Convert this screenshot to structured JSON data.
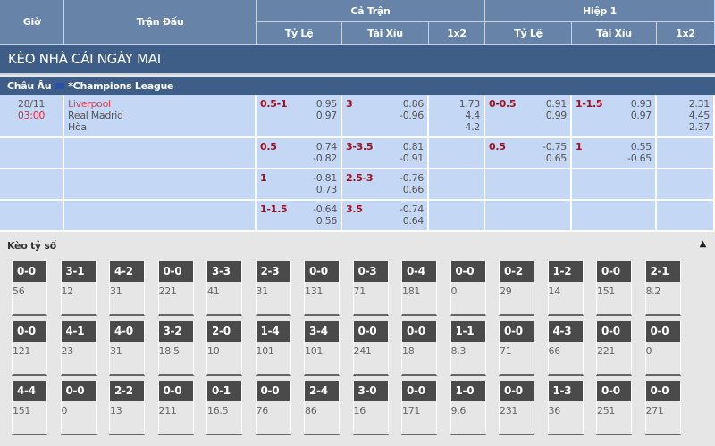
{
  "header": {
    "time": "Giờ",
    "match": "Trận Đấu",
    "full": "Cả Trận",
    "half": "Hiệp 1",
    "handicap": "Tỷ Lệ",
    "overunder": "Tài Xỉu",
    "onextwo": "1x2",
    "handicap2": "Tỷ Lệ",
    "overunder2": "Tài Xỉu",
    "onextwo2": "1x2"
  },
  "title": "KÈO NHÀ CÁI NGÀY MAI",
  "league": {
    "region": "Châu Âu",
    "name": "*Champions League"
  },
  "match": {
    "date": "28/11",
    "time": "03:00",
    "home": "Liverpool",
    "away": "Real Madrid",
    "draw": "Hòa"
  },
  "rows": [
    {
      "hdp": "0.5-1",
      "hdp_o": [
        "0.95",
        "0.97"
      ],
      "ou": "3",
      "ou_o": [
        "0.86",
        "-0.96"
      ],
      "x12": [
        "1.73",
        "4.4",
        "4.2"
      ],
      "h_hdp": "0-0.5",
      "h_hdp_o": [
        "0.91",
        "0.99"
      ],
      "h_ou": "1-1.5",
      "h_ou_o": [
        "0.93",
        "0.97"
      ],
      "h_x12": [
        "2.31",
        "4.45",
        "2.37"
      ]
    },
    {
      "hdp": "0.5",
      "hdp_o": [
        "0.74",
        "-0.82"
      ],
      "ou": "3-3.5",
      "ou_o": [
        "0.81",
        "-0.91"
      ],
      "h_hdp": "0.5",
      "h_hdp_o": [
        "-0.75",
        "0.65"
      ],
      "h_ou": "1",
      "h_ou_o": [
        "0.55",
        "-0.65"
      ]
    },
    {
      "hdp": "1",
      "hdp_o": [
        "-0.81",
        "0.73"
      ],
      "ou": "2.5-3",
      "ou_o": [
        "-0.76",
        "0.66"
      ]
    },
    {
      "hdp": "1-1.5",
      "hdp_o": [
        "-0.64",
        "0.56"
      ],
      "ou": "3.5",
      "ou_o": [
        "-0.74",
        "0.64"
      ]
    }
  ],
  "correct_score": {
    "label": "Kèo tỷ số",
    "collapse_icon": "triangle-up-icon",
    "rows": [
      [
        [
          "0-0",
          "56"
        ],
        [
          "3-1",
          "12"
        ],
        [
          "4-2",
          "31"
        ],
        [
          "0-0",
          "221"
        ],
        [
          "3-3",
          "41"
        ],
        [
          "2-3",
          "31"
        ],
        [
          "0-0",
          "131"
        ],
        [
          "0-3",
          "71"
        ],
        [
          "0-4",
          "181"
        ],
        [
          "0-0",
          "0"
        ],
        [
          "0-2",
          "29"
        ],
        [
          "1-2",
          "14"
        ],
        [
          "0-0",
          "151"
        ],
        [
          "2-1",
          "8.2"
        ]
      ],
      [
        [
          "0-0",
          "121"
        ],
        [
          "4-1",
          "23"
        ],
        [
          "4-0",
          "31"
        ],
        [
          "3-2",
          "18.5"
        ],
        [
          "2-0",
          "10"
        ],
        [
          "1-4",
          "101"
        ],
        [
          "3-4",
          "101"
        ],
        [
          "0-0",
          "241"
        ],
        [
          "0-0",
          "18"
        ],
        [
          "1-1",
          "8.3"
        ],
        [
          "0-0",
          "71"
        ],
        [
          "4-3",
          "66"
        ],
        [
          "0-0",
          "221"
        ],
        [
          "0-0",
          "0"
        ]
      ],
      [
        [
          "4-4",
          "151"
        ],
        [
          "0-0",
          "0"
        ],
        [
          "2-2",
          "13"
        ],
        [
          "0-0",
          "211"
        ],
        [
          "0-1",
          "16.5"
        ],
        [
          "0-0",
          "76"
        ],
        [
          "2-4",
          "86"
        ],
        [
          "3-0",
          "16"
        ],
        [
          "0-0",
          "171"
        ],
        [
          "1-0",
          "9.6"
        ],
        [
          "0-0",
          "231"
        ],
        [
          "1-3",
          "36"
        ],
        [
          "0-0",
          "251"
        ],
        [
          "0-0",
          "271"
        ]
      ]
    ]
  }
}
